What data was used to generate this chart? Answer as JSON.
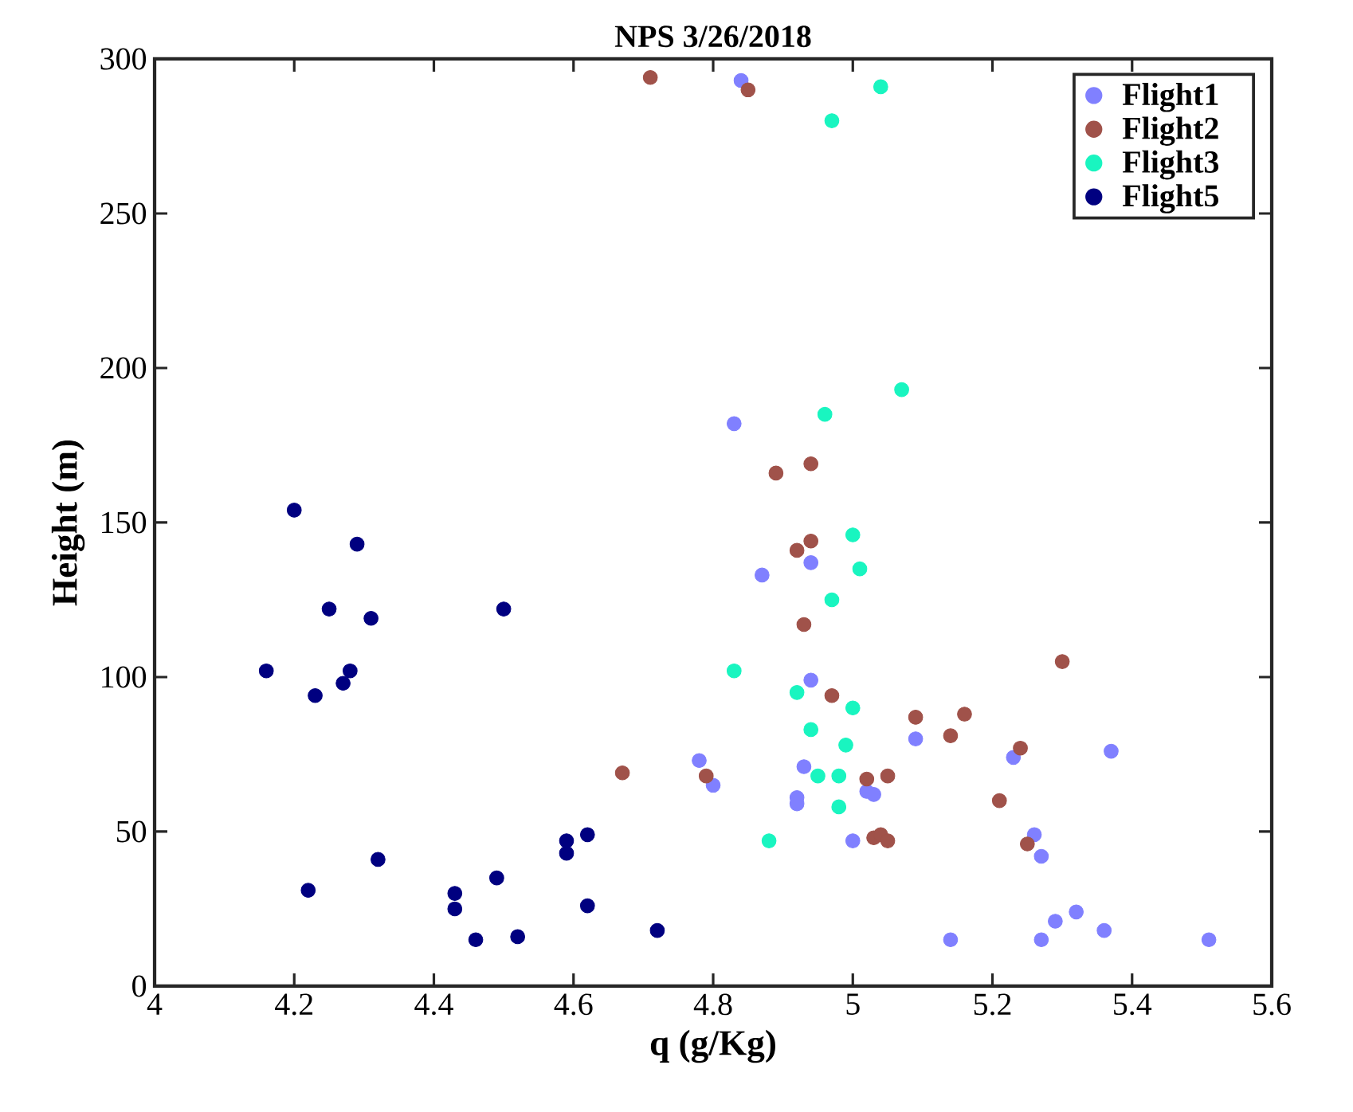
{
  "chart_data": {
    "type": "scatter",
    "title": "NPS 3/26/2018",
    "xlabel": "q (g/Kg)",
    "ylabel": "Height (m)",
    "xlim": [
      4,
      5.6
    ],
    "xticks": [
      4,
      4.2,
      4.4,
      4.6,
      4.8,
      5,
      5.2,
      5.4,
      5.6
    ],
    "ylim": [
      0,
      300
    ],
    "yticks": [
      0,
      50,
      100,
      150,
      200,
      250,
      300
    ],
    "grid": false,
    "legend": "top right",
    "marker": "circle",
    "series": [
      {
        "name": "Flight1",
        "color": "#8080ff",
        "x": [
          4.84,
          4.83,
          4.87,
          4.94,
          4.94,
          4.78,
          4.8,
          4.92,
          4.92,
          4.93,
          5.02,
          5.03,
          5.0,
          5.09,
          5.23,
          5.37,
          5.26,
          5.27,
          5.14,
          5.27,
          5.29,
          5.32,
          5.36,
          5.51
        ],
        "values": [
          293,
          182,
          133,
          137,
          99,
          73,
          65,
          59,
          61,
          71,
          63,
          62,
          47,
          80,
          74,
          76,
          49,
          42,
          15,
          15,
          21,
          24,
          18,
          15
        ]
      },
      {
        "name": "Flight2",
        "color": "#a0524a",
        "x": [
          4.71,
          4.85,
          4.89,
          4.94,
          4.92,
          4.94,
          4.93,
          4.97,
          4.67,
          4.79,
          5.02,
          5.05,
          5.09,
          5.16,
          5.14,
          5.24,
          5.3,
          5.21,
          5.25,
          5.03,
          5.04,
          5.05
        ],
        "values": [
          294,
          290,
          166,
          169,
          141,
          144,
          117,
          94,
          69,
          68,
          67,
          68,
          87,
          88,
          81,
          77,
          105,
          60,
          46,
          48,
          49,
          47
        ]
      },
      {
        "name": "Flight3",
        "color": "#19f5c0",
        "x": [
          5.04,
          4.97,
          5.07,
          4.96,
          5.0,
          5.01,
          4.97,
          4.83,
          4.92,
          5.0,
          4.94,
          4.99,
          4.95,
          4.98,
          4.88,
          4.98
        ],
        "values": [
          291,
          280,
          193,
          185,
          146,
          135,
          125,
          102,
          95,
          90,
          83,
          78,
          68,
          68,
          47,
          58
        ]
      },
      {
        "name": "Flight5",
        "color": "#000080",
        "x": [
          4.2,
          4.29,
          4.25,
          4.31,
          4.5,
          4.16,
          4.28,
          4.27,
          4.23,
          4.32,
          4.22,
          4.43,
          4.43,
          4.49,
          4.46,
          4.52,
          4.59,
          4.59,
          4.62,
          4.62,
          4.72
        ],
        "values": [
          154,
          143,
          122,
          119,
          122,
          102,
          102,
          98,
          94,
          41,
          31,
          30,
          25,
          35,
          15,
          16,
          47,
          43,
          49,
          26,
          18
        ]
      }
    ]
  }
}
